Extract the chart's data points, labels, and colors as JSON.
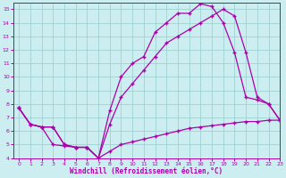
{
  "xlabel": "Windchill (Refroidissement éolien,°C)",
  "xlim": [
    -0.5,
    23
  ],
  "ylim": [
    4,
    15.5
  ],
  "xticks": [
    0,
    1,
    2,
    3,
    4,
    5,
    6,
    7,
    8,
    9,
    10,
    11,
    12,
    13,
    14,
    15,
    16,
    17,
    18,
    19,
    20,
    21,
    22,
    23
  ],
  "yticks": [
    4,
    5,
    6,
    7,
    8,
    9,
    10,
    11,
    12,
    13,
    14,
    15
  ],
  "background_color": "#cceef0",
  "grid_color": "#99cccc",
  "line_color": "#aa00aa",
  "line1_x": [
    0,
    1,
    2,
    3,
    4,
    5,
    6,
    7,
    8,
    9,
    10,
    11,
    12,
    13,
    14,
    15,
    16,
    17,
    18,
    19,
    20,
    21,
    22,
    23
  ],
  "line1_y": [
    7.7,
    6.5,
    6.3,
    5.0,
    4.9,
    4.8,
    4.8,
    4.0,
    4.5,
    5.0,
    5.2,
    5.4,
    5.6,
    5.8,
    6.0,
    6.2,
    6.3,
    6.4,
    6.5,
    6.6,
    6.7,
    6.7,
    6.8,
    6.8
  ],
  "line2_x": [
    0,
    1,
    2,
    3,
    4,
    5,
    6,
    7,
    8,
    9,
    10,
    11,
    12,
    13,
    14,
    15,
    16,
    17,
    18,
    19,
    20,
    21,
    22,
    23
  ],
  "line2_y": [
    7.7,
    6.5,
    6.3,
    6.3,
    5.0,
    4.8,
    4.8,
    4.0,
    7.5,
    10.0,
    11.0,
    11.5,
    13.3,
    14.0,
    14.7,
    14.7,
    15.4,
    15.2,
    14.0,
    11.8,
    8.5,
    8.3,
    8.0,
    6.8
  ],
  "line3_x": [
    0,
    1,
    2,
    3,
    4,
    5,
    6,
    7,
    8,
    9,
    10,
    11,
    12,
    13,
    14,
    15,
    16,
    17,
    18,
    19,
    20,
    21,
    22,
    23
  ],
  "line3_y": [
    7.7,
    6.5,
    6.3,
    6.3,
    5.0,
    4.8,
    4.8,
    4.0,
    6.5,
    8.5,
    9.5,
    10.5,
    11.5,
    12.5,
    13.0,
    13.5,
    14.0,
    14.5,
    15.0,
    14.5,
    11.8,
    8.5,
    8.0,
    6.8
  ]
}
